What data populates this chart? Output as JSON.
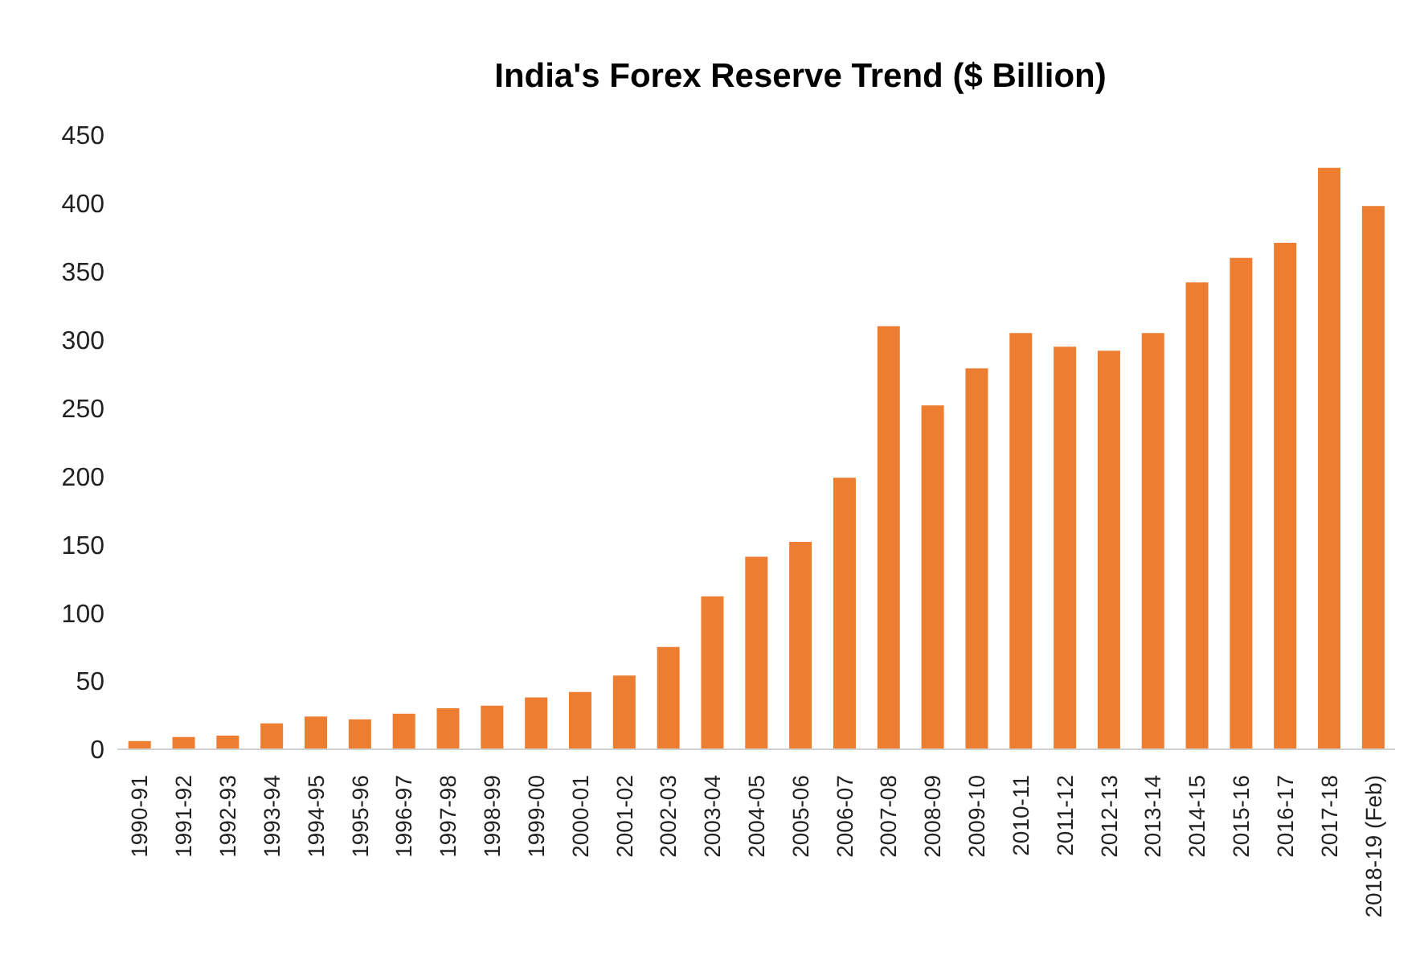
{
  "chart_data": {
    "type": "bar",
    "title": "India's Forex Reserve Trend ($ Billion)",
    "categories": [
      "1990-91",
      "1991-92",
      "1992-93",
      "1993-94",
      "1994-95",
      "1995-96",
      "1996-97",
      "1997-98",
      "1998-99",
      "1999-00",
      "2000-01",
      "2001-02",
      "2002-03",
      "2003-04",
      "2004-05",
      "2005-06",
      "2006-07",
      "2007-08",
      "2008-09",
      "2009-10",
      "2010-11",
      "2011-12",
      "2012-13",
      "2013-14",
      "2014-15",
      "2015-16",
      "2016-17",
      "2017-18",
      "2018-19 (Feb)"
    ],
    "values": [
      6,
      9,
      10,
      19,
      24,
      22,
      26,
      30,
      32,
      38,
      42,
      54,
      75,
      112,
      141,
      152,
      199,
      310,
      252,
      279,
      305,
      295,
      292,
      305,
      342,
      360,
      371,
      426,
      398
    ],
    "color": "#ed7d31",
    "ylim": [
      0,
      450
    ],
    "yticks": [
      0,
      50,
      100,
      150,
      200,
      250,
      300,
      350,
      400,
      450
    ],
    "grid": false,
    "legend": false
  }
}
